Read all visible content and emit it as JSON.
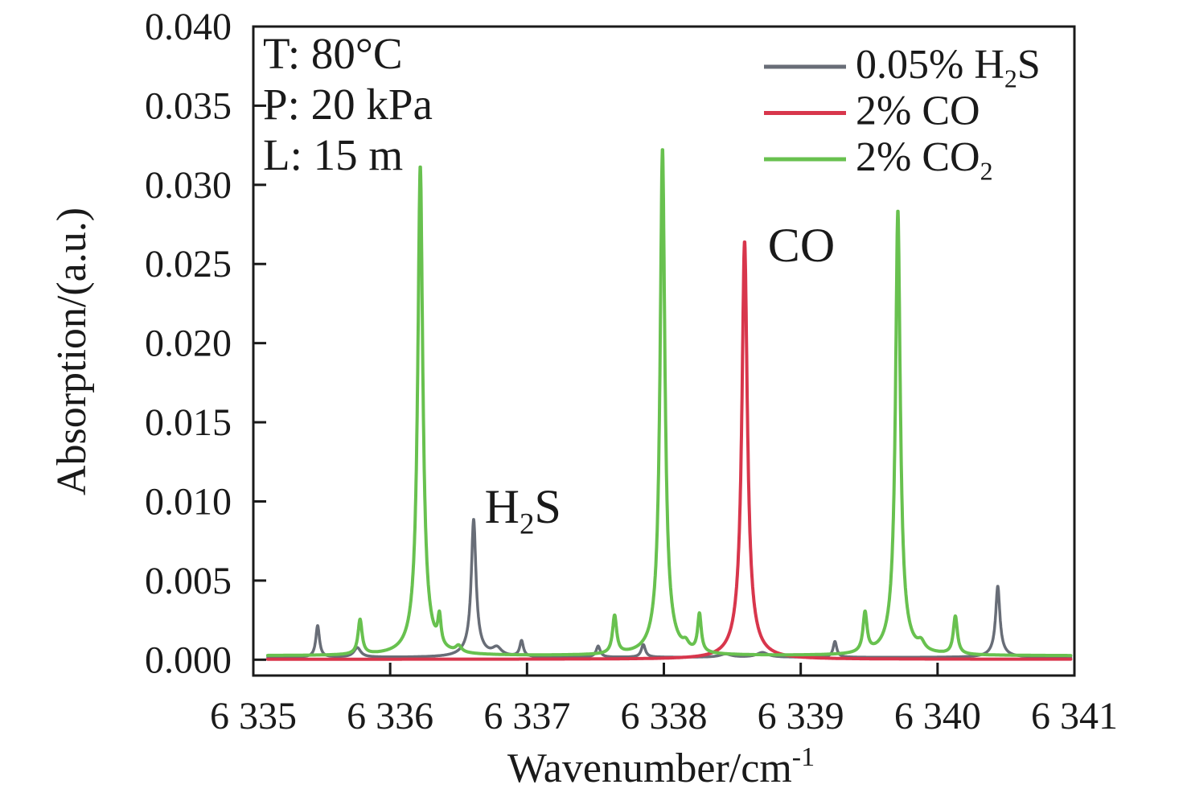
{
  "chart_data": {
    "type": "line",
    "title": "",
    "xlabel_main": "Wavenumber/cm",
    "xlabel_sup": "-1",
    "ylabel": "Absorption/(a.u.)",
    "xlim": [
      6335,
      6341
    ],
    "ylim": [
      -0.001,
      0.04
    ],
    "grid": false,
    "x_tick_values": [
      6335,
      6336,
      6337,
      6338,
      6339,
      6340,
      6341
    ],
    "x_tick_labels": [
      "6 335",
      "6 336",
      "6 337",
      "6 338",
      "6 339",
      "6 340",
      "6 341"
    ],
    "y_tick_values": [
      0.0,
      0.005,
      0.01,
      0.015,
      0.02,
      0.025,
      0.03,
      0.035,
      0.04
    ],
    "y_tick_labels": [
      "0.000",
      "0.005",
      "0.010",
      "0.015",
      "0.020",
      "0.025",
      "0.030",
      "0.035",
      "0.040"
    ],
    "conditions": [
      "T: 80°C",
      "P: 20 kPa",
      "L: 15 m"
    ],
    "legend": {
      "position": "top-right",
      "items": [
        {
          "id": "h2s",
          "color": "#686d77",
          "parts": [
            {
              "t": "0.05% H"
            },
            {
              "t": "2",
              "sub": true
            },
            {
              "t": "S"
            }
          ]
        },
        {
          "id": "co",
          "color": "#d8364c",
          "parts": [
            {
              "t": "2% CO"
            }
          ]
        },
        {
          "id": "co2",
          "color": "#68c14f",
          "parts": [
            {
              "t": "2% CO"
            },
            {
              "t": "2",
              "sub": true
            }
          ]
        }
      ]
    },
    "peak_annotations": [
      {
        "id": "h2s-peak-label",
        "x": 6336.69,
        "y": 0.00865,
        "parts": [
          {
            "t": "H"
          },
          {
            "t": "2",
            "sub": true
          },
          {
            "t": "S"
          }
        ]
      },
      {
        "id": "co-peak-label",
        "x": 6338.76,
        "y": 0.02516,
        "parts": [
          {
            "t": "CO"
          }
        ]
      }
    ],
    "series": [
      {
        "id": "h2s",
        "name": "0.05% H2S",
        "color": "#686d77",
        "baseline": 0.00015,
        "peaks": [
          [
            6335.47,
            0.002,
            0.016
          ],
          [
            6335.76,
            0.0006,
            0.03
          ],
          [
            6336.61,
            0.008,
            0.02
          ],
          [
            6336.61,
            0.0007,
            0.07
          ],
          [
            6336.78,
            0.0005,
            0.04
          ],
          [
            6336.96,
            0.001,
            0.016
          ],
          [
            6337.52,
            0.0007,
            0.018
          ],
          [
            6337.85,
            0.0008,
            0.018
          ],
          [
            6338.45,
            0.0002,
            0.05
          ],
          [
            6338.72,
            0.0003,
            0.05
          ],
          [
            6339.25,
            0.001,
            0.016
          ],
          [
            6340.44,
            0.0041,
            0.018
          ],
          [
            6340.44,
            0.0004,
            0.06
          ]
        ]
      },
      {
        "id": "co",
        "name": "2% CO",
        "color": "#d8364c",
        "baseline": 3e-05,
        "peaks": [
          [
            6338.59,
            0.024,
            0.023
          ],
          [
            6338.59,
            0.0024,
            0.07
          ]
        ]
      },
      {
        "id": "co2",
        "name": "2% CO2",
        "color": "#68c14f",
        "baseline": 0.00025,
        "peaks": [
          [
            6335.78,
            0.0022,
            0.018
          ],
          [
            6336.22,
            0.0285,
            0.021
          ],
          [
            6336.22,
            0.0024,
            0.06
          ],
          [
            6336.36,
            0.0018,
            0.014
          ],
          [
            6336.5,
            0.0004,
            0.025
          ],
          [
            6337.64,
            0.0024,
            0.018
          ],
          [
            6337.99,
            0.0296,
            0.02
          ],
          [
            6337.99,
            0.0024,
            0.06
          ],
          [
            6338.16,
            0.0004,
            0.025
          ],
          [
            6338.26,
            0.0024,
            0.016
          ],
          [
            6339.47,
            0.0025,
            0.018
          ],
          [
            6339.71,
            0.0258,
            0.02
          ],
          [
            6339.71,
            0.0023,
            0.06
          ],
          [
            6339.88,
            0.0005,
            0.03
          ],
          [
            6340.13,
            0.0024,
            0.018
          ]
        ]
      }
    ]
  }
}
